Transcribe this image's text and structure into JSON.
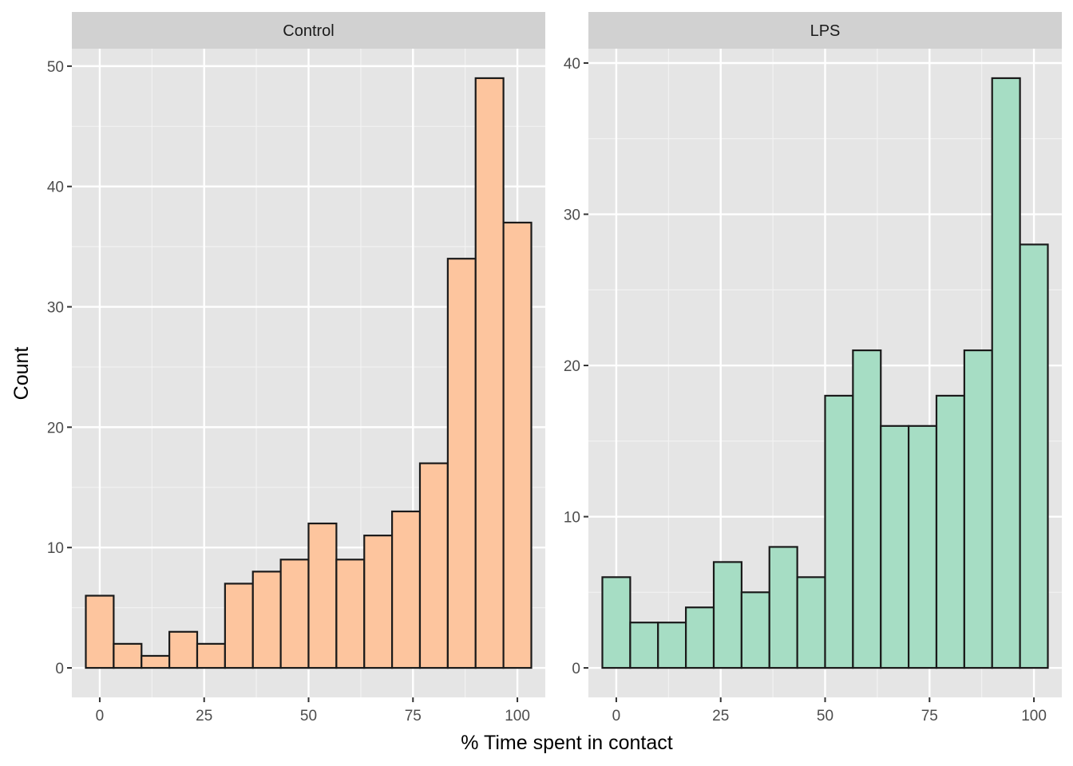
{
  "chart_data": {
    "type": "bar",
    "xlabel": "% Time spent in contact",
    "ylabel": "Count",
    "x_ticks": [
      0,
      25,
      50,
      75,
      100
    ],
    "bin_width": 6.67,
    "colors": {
      "Control": "#FDC59E",
      "LPS": "#A6DDC4",
      "panel_bg": "#E5E5E5",
      "strip_bg": "#D1D1D1",
      "outline": "#1A1A1A"
    },
    "panels": [
      {
        "name": "Control",
        "y_ticks": [
          0,
          10,
          20,
          30,
          40,
          50
        ],
        "ylim": [
          -2.45,
          51.45
        ],
        "bin_centers": [
          0,
          6.67,
          13.33,
          20,
          26.67,
          33.33,
          40,
          46.67,
          53.33,
          60,
          66.67,
          73.33,
          80,
          86.67,
          93.33,
          100
        ],
        "values": [
          6,
          2,
          1,
          3,
          2,
          7,
          8,
          9,
          12,
          9,
          11,
          13,
          17,
          34,
          49,
          37
        ]
      },
      {
        "name": "LPS",
        "y_ticks": [
          0,
          10,
          20,
          30,
          40
        ],
        "ylim": [
          -1.95,
          40.95
        ],
        "bin_centers": [
          0,
          6.67,
          13.33,
          20,
          26.67,
          33.33,
          40,
          46.67,
          53.33,
          60,
          66.67,
          73.33,
          80,
          86.67,
          93.33,
          100
        ],
        "values": [
          6,
          3,
          3,
          4,
          7,
          5,
          8,
          6,
          18,
          21,
          16,
          16,
          18,
          21,
          39,
          28
        ]
      }
    ]
  }
}
